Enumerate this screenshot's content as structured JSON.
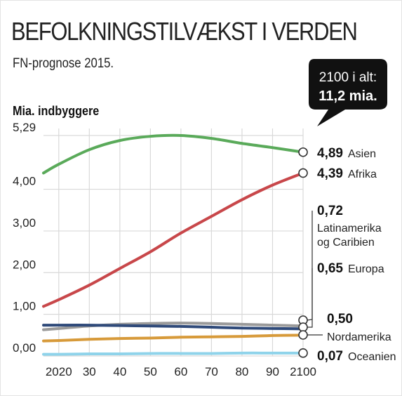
{
  "title": "BEFOLKNINGSTILVÆKST I VERDEN",
  "subtitle": "FN-prognose 2015.",
  "callout": {
    "line1": "2100 i alt:",
    "line2": "11,2 mia."
  },
  "colors": {
    "asia": "#5aaa5a",
    "africa": "#c8474a",
    "latam": "#8c8c8c",
    "europe": "#9a9a9a",
    "namerica": "#2f4a7a",
    "oceania": "#8fd3ea",
    "europe_line": "#aaaaaa",
    "oceania_line": "#d79a3a"
  },
  "chart_data": {
    "type": "line",
    "ylabel": "Mia. indbyggere",
    "ylim": [
      0,
      5.29
    ],
    "yticks": [
      {
        "value": 0,
        "label": "0,00"
      },
      {
        "value": 1,
        "label": "1,00"
      },
      {
        "value": 2,
        "label": "2,00"
      },
      {
        "value": 3,
        "label": "3,00"
      },
      {
        "value": 4,
        "label": "4,00"
      },
      {
        "value": 5.29,
        "label": "5,29"
      }
    ],
    "xlim": [
      2015,
      2100
    ],
    "xticks": [
      {
        "value": 2020,
        "label": "2020"
      },
      {
        "value": 2030,
        "label": "30"
      },
      {
        "value": 2040,
        "label": "40"
      },
      {
        "value": 2050,
        "label": "50"
      },
      {
        "value": 2060,
        "label": "60"
      },
      {
        "value": 2070,
        "label": "70"
      },
      {
        "value": 2080,
        "label": "80"
      },
      {
        "value": 2090,
        "label": "90"
      },
      {
        "value": 2100,
        "label": "2100"
      }
    ],
    "grid": true,
    "series": [
      {
        "key": "asia",
        "color": "#5aaa5a",
        "x": [
          2015,
          2020,
          2030,
          2040,
          2050,
          2060,
          2070,
          2080,
          2090,
          2100
        ],
        "y": [
          4.39,
          4.6,
          4.95,
          5.17,
          5.27,
          5.29,
          5.22,
          5.1,
          5.0,
          4.89
        ],
        "end_value": "4,89",
        "end_label": "Asien",
        "end_label2": ""
      },
      {
        "key": "africa",
        "color": "#c8474a",
        "x": [
          2015,
          2020,
          2030,
          2040,
          2050,
          2060,
          2070,
          2080,
          2090,
          2100
        ],
        "y": [
          1.19,
          1.35,
          1.7,
          2.1,
          2.5,
          2.95,
          3.35,
          3.75,
          4.1,
          4.39
        ],
        "end_value": "4,39",
        "end_label": "Afrika",
        "end_label2": ""
      },
      {
        "key": "latam",
        "color": "#9a9a9a",
        "x": [
          2015,
          2020,
          2030,
          2040,
          2050,
          2060,
          2070,
          2080,
          2090,
          2100
        ],
        "y": [
          0.63,
          0.66,
          0.72,
          0.76,
          0.78,
          0.79,
          0.78,
          0.76,
          0.74,
          0.72
        ],
        "end_value": "0,72",
        "end_label": "Latinamerika",
        "end_label2": "og Caribien"
      },
      {
        "key": "europe",
        "color": "#2f4a7a",
        "x": [
          2015,
          2020,
          2030,
          2040,
          2050,
          2060,
          2070,
          2080,
          2090,
          2100
        ],
        "y": [
          0.74,
          0.74,
          0.74,
          0.73,
          0.72,
          0.71,
          0.69,
          0.67,
          0.66,
          0.65
        ],
        "end_value": "0,65",
        "end_label": "Europa",
        "end_label2": ""
      },
      {
        "key": "namerica",
        "color": "#d79a3a",
        "x": [
          2015,
          2020,
          2030,
          2040,
          2050,
          2060,
          2070,
          2080,
          2090,
          2100
        ],
        "y": [
          0.36,
          0.37,
          0.4,
          0.42,
          0.43,
          0.45,
          0.46,
          0.47,
          0.49,
          0.5
        ],
        "end_value": "0,50",
        "end_label": "Nordamerika",
        "end_label2": ""
      },
      {
        "key": "oceania",
        "color": "#8fd3ea",
        "x": [
          2015,
          2020,
          2030,
          2040,
          2050,
          2060,
          2070,
          2080,
          2090,
          2100
        ],
        "y": [
          0.04,
          0.04,
          0.05,
          0.05,
          0.06,
          0.06,
          0.06,
          0.07,
          0.07,
          0.07
        ],
        "end_value": "0,07",
        "end_label": "Oceanien",
        "end_label2": ""
      }
    ]
  }
}
